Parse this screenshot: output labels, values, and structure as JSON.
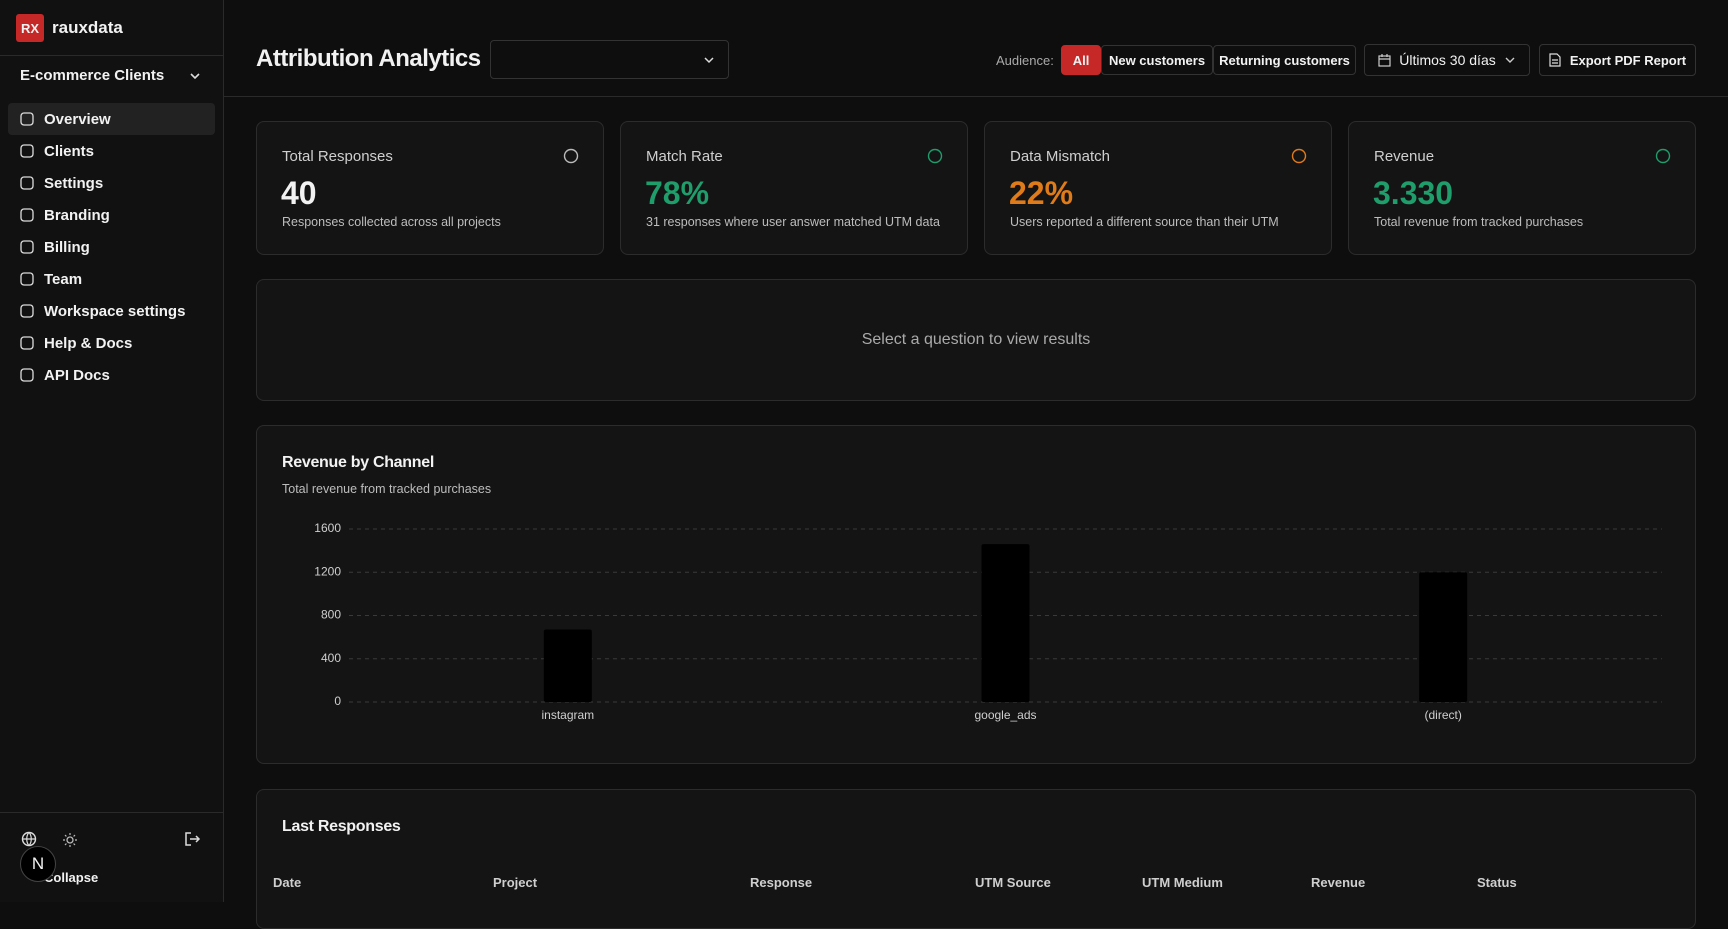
{
  "sidebar": {
    "logo": "RX",
    "brand": "rauxdata",
    "workspace": "E-commerce Clients",
    "nav": [
      "Overview",
      "Clients",
      "Settings",
      "Branding",
      "Billing",
      "Team",
      "Workspace settings",
      "Help & Docs",
      "API Docs"
    ],
    "collapse": "Collapse",
    "avatar": "N"
  },
  "header": {
    "title": "Attribution Analytics",
    "audience_label": "Audience:",
    "audience_options": [
      "All",
      "New customers",
      "Returning customers"
    ],
    "date_range": "Últimos 30 días",
    "export": "Export PDF Report"
  },
  "kpis": [
    {
      "label": "Total Responses",
      "value": "40",
      "description": "Responses collected across all projects"
    },
    {
      "label": "Match Rate",
      "value": "78%",
      "description": "31 responses where user answer matched UTM data"
    },
    {
      "label": "Data Mismatch",
      "value": "22%",
      "description": "Users reported a different source than their UTM"
    },
    {
      "label": "Revenue",
      "value": "3.330",
      "description": "Total revenue from tracked purchases"
    }
  ],
  "question_panel": {
    "message": "Select a question to view results"
  },
  "chart_data": {
    "type": "bar",
    "title": "Revenue by Channel",
    "subtitle": "Total revenue from tracked purchases",
    "categories": [
      "instagram",
      "google_ads",
      "(direct)"
    ],
    "values": [
      670,
      1460,
      1200
    ],
    "color": "#000000",
    "ylim": [
      0,
      1600
    ],
    "yticks": [
      0,
      400,
      800,
      1200,
      1600
    ],
    "grid": true
  },
  "table": {
    "title": "Last Responses",
    "columns": [
      "Date",
      "Project",
      "Response",
      "UTM Source",
      "UTM Medium",
      "Revenue",
      "Status"
    ]
  }
}
